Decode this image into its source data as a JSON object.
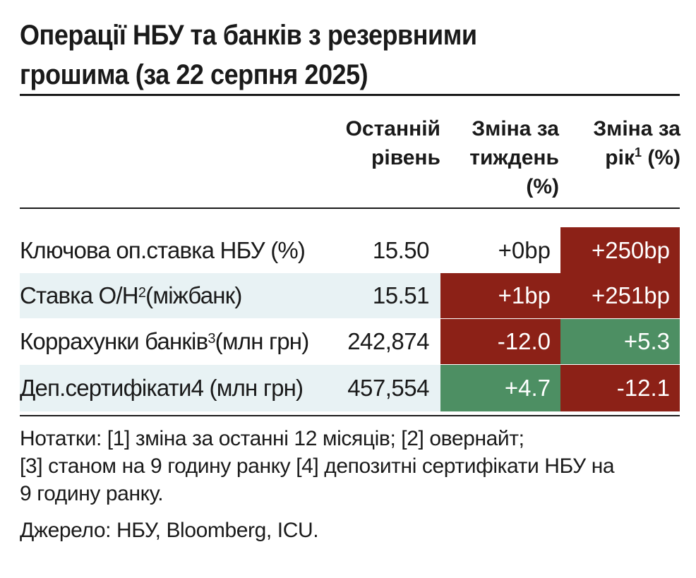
{
  "title_line1": "Операції НБУ та банків з резервними",
  "title_line2": "грошима (за 22 серпня 2025)",
  "headers": {
    "last": [
      "Останній",
      "рівень"
    ],
    "week": [
      "Зміна за",
      "тиждень",
      "(%)"
    ],
    "year_pre": [
      "Зміна за",
      "рік"
    ],
    "year_sup": "1",
    "year_post": " (%)"
  },
  "rows": [
    {
      "label": "Ключова оп.ставка НБУ (%)",
      "sup": "",
      "label_post": "",
      "last": "15.50",
      "week": "+0bp",
      "year": "+250bp"
    },
    {
      "label": "Ставка О/Н",
      "sup": "2",
      "label_post": " (міжбанк)",
      "last": "15.51",
      "week": "+1bp",
      "year": "+251bp"
    },
    {
      "label": "Коррахунки банків",
      "sup": "3",
      "label_post": " (млн грн)",
      "last": "242,874",
      "week": "-12.0",
      "year": "+5.3"
    },
    {
      "label": "Деп.сертифікати4 (млн грн)",
      "sup": "",
      "label_post": "",
      "last": "457,554",
      "week": "+4.7",
      "year": "-12.1"
    }
  ],
  "notes": [
    "Нотатки: [1] зміна за останні 12 місяців; [2] овернайт;",
    "[3] станом на 9 годину ранку [4] депозитні сертифікати НБУ на",
    "9 годину ранку."
  ],
  "source": "Джерело: НБУ, Bloomberg, ICU.",
  "colors": {
    "negative": "#8c2117",
    "positive": "#4d8f63",
    "alt_row": "#e8f2f4"
  }
}
